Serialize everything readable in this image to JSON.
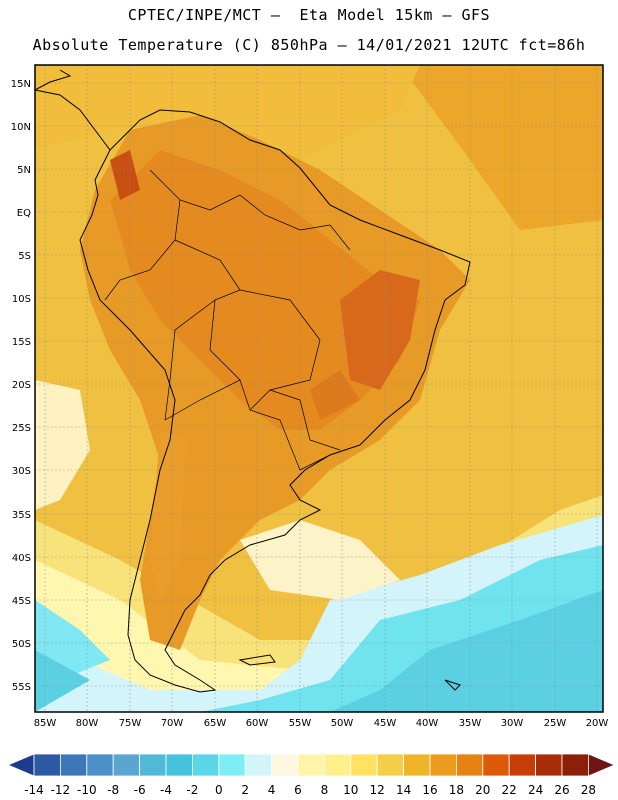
{
  "header": {
    "line1": "CPTEC/INPE/MCT –  Eta Model 15km – GFS",
    "line2": "Absolute Temperature (C) 850hPa – 14/01/2021 12UTC fct=86h"
  },
  "map": {
    "lat_labels": [
      "15N",
      "10N",
      "5N",
      "EQ",
      "5S",
      "10S",
      "15S",
      "20S",
      "25S",
      "30S",
      "35S",
      "40S",
      "45S",
      "50S",
      "55S"
    ],
    "lon_labels": [
      "85W",
      "80W",
      "75W",
      "70W",
      "65W",
      "60W",
      "55W",
      "50W",
      "45W",
      "40W",
      "35W",
      "30W",
      "25W",
      "20W"
    ]
  },
  "colorbar": {
    "labels": [
      "-14",
      "-12",
      "-10",
      "-8",
      "-6",
      "-4",
      "-2",
      "0",
      "2",
      "4",
      "6",
      "8",
      "10",
      "12",
      "14",
      "16",
      "18",
      "20",
      "22",
      "24",
      "26",
      "28"
    ],
    "colors": [
      "#1e3c8c",
      "#2d5aa5",
      "#3c78b9",
      "#4b91c8",
      "#5aa5d2",
      "#50b9d7",
      "#46c3dc",
      "#5ad7e6",
      "#7deef5",
      "#d2f5fa",
      "#fff8e1",
      "#fff5aa",
      "#fff08c",
      "#ffe164",
      "#f5cd46",
      "#f0b428",
      "#eb9b1e",
      "#e68214",
      "#dc5a0a",
      "#c83c0a",
      "#aa2d0a",
      "#8c1e0a",
      "#6e1414"
    ]
  }
}
